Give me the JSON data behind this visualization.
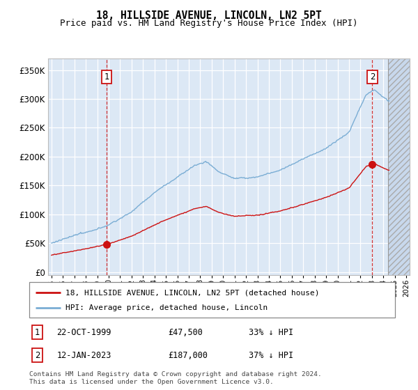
{
  "title": "18, HILLSIDE AVENUE, LINCOLN, LN2 5PT",
  "subtitle": "Price paid vs. HM Land Registry's House Price Index (HPI)",
  "title_fontsize": 10.5,
  "subtitle_fontsize": 9,
  "plot_bg_color": "#dce8f5",
  "hpi_color": "#7aadd4",
  "price_color": "#cc1111",
  "dashed_color": "#cc1111",
  "sale1_price": 47500,
  "sale1_x": 1999.81,
  "sale2_price": 187000,
  "sale2_x": 2023.04,
  "yticks": [
    0,
    50000,
    100000,
    150000,
    200000,
    250000,
    300000,
    350000
  ],
  "xlim": [
    1994.7,
    2026.3
  ],
  "ylim": [
    -5000,
    370000
  ],
  "hatch_start": 2024.4,
  "footer_text": "Contains HM Land Registry data © Crown copyright and database right 2024.\nThis data is licensed under the Open Government Licence v3.0.",
  "legend_line1": "18, HILLSIDE AVENUE, LINCOLN, LN2 5PT (detached house)",
  "legend_line2": "HPI: Average price, detached house, Lincoln",
  "table_row1": [
    "1",
    "22-OCT-1999",
    "£47,500",
    "33% ↓ HPI"
  ],
  "table_row2": [
    "2",
    "12-JAN-2023",
    "£187,000",
    "37% ↓ HPI"
  ]
}
